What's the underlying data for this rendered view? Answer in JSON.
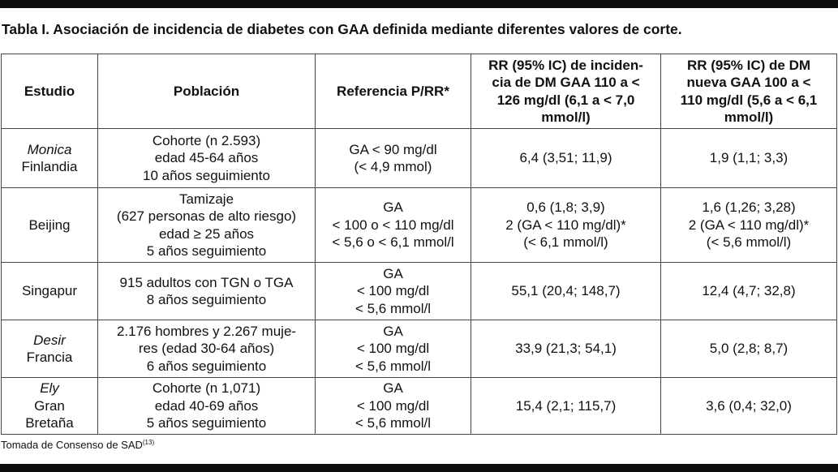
{
  "title": "Tabla I. Asociación de incidencia de diabetes con GAA definida mediante diferentes valores de corte.",
  "headers": {
    "estudio": "Estudio",
    "poblacion": "Población",
    "referencia": "Referencia P/RR*",
    "rr110": [
      "RR (95% IC) de inciden-",
      "cia de DM GAA 110 a <",
      "126 mg/dl (6,1 a < 7,0",
      "mmol/l)"
    ],
    "rr100": [
      "RR (95% IC) de DM",
      "nueva GAA 100 a <",
      "110 mg/dl (5,6 a < 6,1",
      "mmol/l)"
    ]
  },
  "rows": [
    {
      "estudio_it": "Monica",
      "estudio": "Finlandia",
      "poblacion": [
        "Cohorte (n 2.593)",
        "edad 45-64 años",
        "10 años seguimiento"
      ],
      "referencia": [
        "GA < 90 mg/dl",
        "(< 4,9 mmol)"
      ],
      "rr110": [
        "6,4 (3,51; 11,9)"
      ],
      "rr100": [
        "1,9 (1,1; 3,3)"
      ]
    },
    {
      "estudio_it": "",
      "estudio": "Beijing",
      "poblacion": [
        "Tamizaje",
        "(627 personas de alto riesgo)",
        "edad ≥ 25 años",
        "5 años seguimiento"
      ],
      "referencia": [
        "GA",
        "< 100 o < 110 mg/dl",
        "< 5,6 o < 6,1 mmol/l"
      ],
      "rr110": [
        "0,6 (1,8; 3,9)",
        "2 (GA < 110 mg/dl)*",
        "(< 6,1 mmol/l)"
      ],
      "rr100": [
        "1,6 (1,26; 3,28)",
        "2 (GA < 110 mg/dl)*",
        "(< 5,6 mmol/l)"
      ]
    },
    {
      "estudio_it": "",
      "estudio": "Singapur",
      "poblacion": [
        "915 adultos con TGN o TGA",
        "8 años seguimiento"
      ],
      "referencia": [
        "GA",
        "< 100 mg/dl",
        "< 5,6 mmol/l"
      ],
      "rr110": [
        "55,1 (20,4; 148,7)"
      ],
      "rr100": [
        "12,4 (4,7; 32,8)"
      ]
    },
    {
      "estudio_it": "Desir",
      "estudio": "Francia",
      "poblacion": [
        "2.176 hombres y 2.267 muje-",
        "res (edad 30-64 años)",
        "6 años seguimiento"
      ],
      "referencia": [
        "GA",
        "< 100 mg/dl",
        "< 5,6 mmol/l"
      ],
      "rr110": [
        "33,9 (21,3; 54,1)"
      ],
      "rr100": [
        "5,0 (2,8; 8,7)"
      ]
    },
    {
      "estudio_it": "Ely",
      "estudio": "Gran\nBretaña",
      "poblacion": [
        "Cohorte (n 1,071)",
        "edad 40-69 años",
        "5 años seguimiento"
      ],
      "referencia": [
        "GA",
        "< 100 mg/dl",
        "< 5,6 mmol/l"
      ],
      "rr110": [
        "15,4 (2,1; 115,7)"
      ],
      "rr100": [
        "3,6 (0,4; 32,0)"
      ]
    }
  ],
  "source": {
    "text": "Tomada de Consenso de SAD",
    "ref": "(13)"
  }
}
